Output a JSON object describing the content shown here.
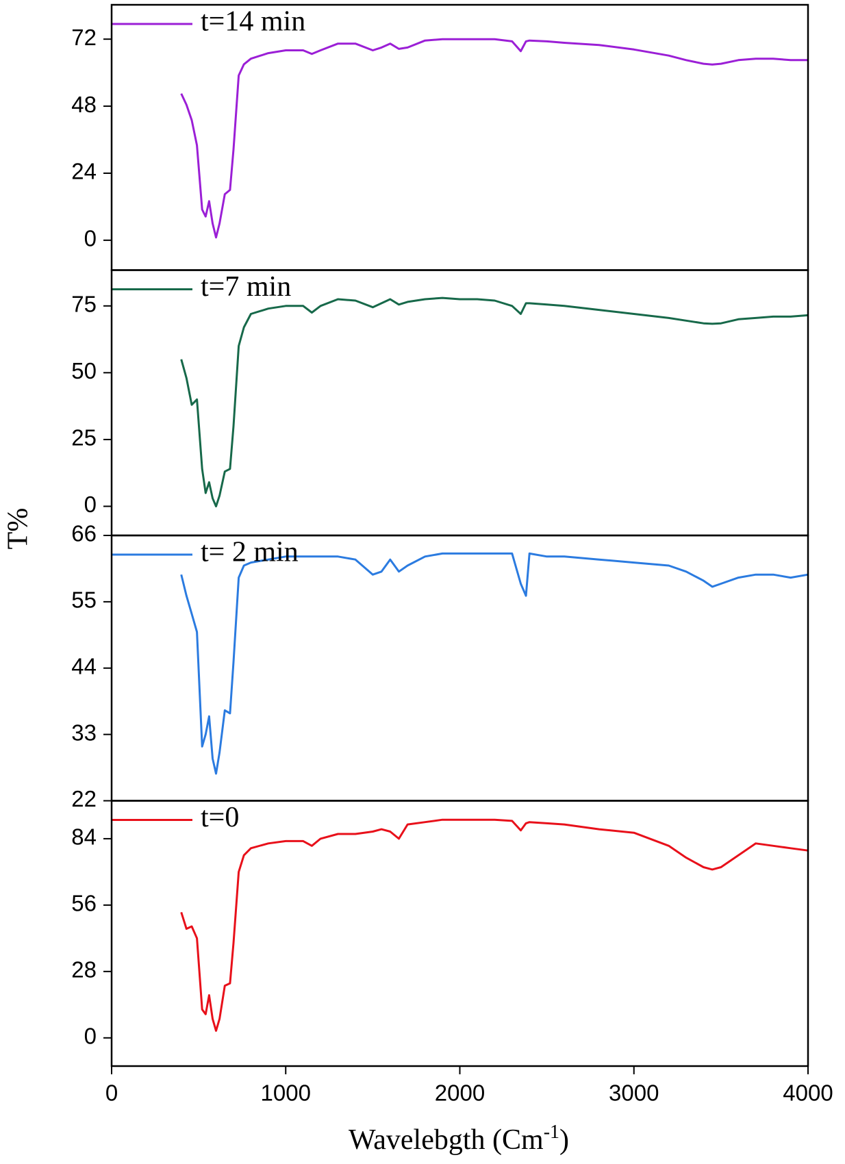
{
  "figure": {
    "ylabel": "T%",
    "xlabel": {
      "text": "Wavelebgth (Cm",
      "superscript": "-1",
      "close": ")"
    }
  },
  "chart_data": [
    {
      "type": "line",
      "xlim": [
        0,
        4000
      ],
      "ylim": [
        -10.7,
        84.3
      ],
      "yticks": [
        0,
        24,
        48,
        72
      ],
      "x": [
        400,
        430,
        460,
        490,
        520,
        540,
        560,
        580,
        600,
        620,
        650,
        680,
        700,
        730,
        760,
        800,
        900,
        1000,
        1100,
        1150,
        1200,
        1300,
        1400,
        1500,
        1550,
        1600,
        1650,
        1700,
        1800,
        1900,
        2000,
        2100,
        2200,
        2300,
        2350,
        2380,
        2400,
        2500,
        2600,
        2800,
        3000,
        3200,
        3300,
        3400,
        3450,
        3500,
        3600,
        3700,
        3800,
        3900,
        4000
      ],
      "series": [
        {
          "name": "t=14 min",
          "color": "#9b1fd6",
          "values": [
            52.5,
            48.5,
            43,
            34,
            11,
            8.5,
            14,
            6,
            1,
            6,
            16.5,
            18,
            32.5,
            59,
            63,
            65,
            67,
            68,
            68,
            66.7,
            68,
            70.4,
            70.4,
            68,
            69,
            70.4,
            68.5,
            69,
            71.5,
            72,
            72,
            72,
            72,
            71.2,
            67.7,
            71.2,
            71.5,
            71.2,
            70.7,
            69.9,
            68.3,
            66.1,
            64.5,
            63.2,
            62.9,
            63.2,
            64.5,
            65,
            65,
            64.5,
            64.5
          ]
        }
      ]
    },
    {
      "type": "line",
      "xlim": [
        0,
        4000
      ],
      "ylim": [
        -10.9,
        88.4
      ],
      "yticks": [
        0,
        25,
        50,
        75
      ],
      "x": [
        400,
        430,
        460,
        490,
        520,
        540,
        560,
        580,
        600,
        620,
        650,
        680,
        700,
        730,
        760,
        800,
        900,
        1000,
        1100,
        1150,
        1200,
        1300,
        1400,
        1500,
        1550,
        1600,
        1650,
        1700,
        1800,
        1900,
        2000,
        2100,
        2200,
        2300,
        2350,
        2380,
        2400,
        2500,
        2600,
        2800,
        3000,
        3200,
        3300,
        3400,
        3450,
        3500,
        3600,
        3700,
        3800,
        3900,
        4000
      ],
      "series": [
        {
          "name": "t=7 min",
          "color": "#17694a",
          "values": [
            55,
            48,
            38,
            40,
            14,
            5,
            9,
            3,
            0,
            4,
            13,
            14,
            30,
            60,
            67,
            72,
            74,
            75,
            75,
            72.5,
            75,
            77.5,
            77,
            74.5,
            76,
            77.5,
            75.5,
            76.5,
            77.5,
            78,
            77.5,
            77.5,
            77,
            75,
            72,
            76,
            76,
            75.5,
            75,
            73.5,
            72,
            70.5,
            69.5,
            68.5,
            68.3,
            68.5,
            70,
            70.5,
            71,
            71,
            71.5
          ]
        }
      ]
    },
    {
      "type": "line",
      "xlim": [
        0,
        4000
      ],
      "ylim": [
        22,
        66
      ],
      "yticks": [
        22,
        33,
        44,
        55,
        66
      ],
      "x": [
        400,
        430,
        460,
        490,
        520,
        540,
        560,
        580,
        600,
        620,
        650,
        680,
        700,
        730,
        760,
        800,
        900,
        1000,
        1100,
        1150,
        1200,
        1300,
        1400,
        1500,
        1550,
        1600,
        1650,
        1700,
        1800,
        1900,
        2000,
        2100,
        2200,
        2300,
        2350,
        2380,
        2400,
        2500,
        2600,
        2800,
        3000,
        3200,
        3300,
        3400,
        3450,
        3500,
        3600,
        3700,
        3800,
        3900,
        4000
      ],
      "series": [
        {
          "name": "t= 2 min",
          "color": "#2b7be0",
          "values": [
            59.5,
            56,
            53,
            50,
            31,
            33,
            36,
            29,
            26.5,
            30,
            37,
            36.5,
            45,
            59,
            61,
            61.5,
            62,
            62.5,
            62.5,
            62.5,
            62.5,
            62.5,
            62,
            59.5,
            60,
            62,
            60,
            61,
            62.5,
            63,
            63,
            63,
            63,
            63,
            58,
            56,
            63,
            62.5,
            62.5,
            62,
            61.5,
            61,
            60,
            58.5,
            57.5,
            58,
            59,
            59.5,
            59.5,
            59,
            59.5
          ]
        }
      ]
    },
    {
      "type": "line",
      "xlim": [
        0,
        4000
      ],
      "ylim": [
        -11.9,
        100
      ],
      "yticks": [
        0,
        28,
        56,
        84
      ],
      "xticks": [
        0,
        1000,
        2000,
        3000,
        4000
      ],
      "x": [
        400,
        430,
        460,
        490,
        520,
        540,
        560,
        580,
        600,
        620,
        650,
        680,
        700,
        730,
        760,
        800,
        900,
        1000,
        1100,
        1150,
        1200,
        1300,
        1400,
        1500,
        1550,
        1600,
        1650,
        1700,
        1800,
        1900,
        2000,
        2100,
        2200,
        2300,
        2350,
        2380,
        2400,
        2500,
        2600,
        2800,
        3000,
        3200,
        3300,
        3400,
        3450,
        3500,
        3600,
        3700,
        3800,
        3900,
        4000
      ],
      "series": [
        {
          "name": "t=0",
          "color": "#e8101a",
          "values": [
            53,
            46,
            47,
            42,
            12,
            10,
            18,
            8,
            3,
            8,
            22,
            23,
            40,
            70,
            77,
            80,
            82,
            83,
            83,
            81,
            84,
            86,
            86,
            87,
            88,
            87,
            84,
            90,
            91,
            92,
            92,
            92,
            92,
            91.5,
            87.5,
            90.5,
            91,
            90.5,
            90,
            88,
            86.5,
            81,
            76,
            72,
            71,
            72,
            77,
            82,
            81,
            80,
            79
          ]
        }
      ]
    }
  ]
}
